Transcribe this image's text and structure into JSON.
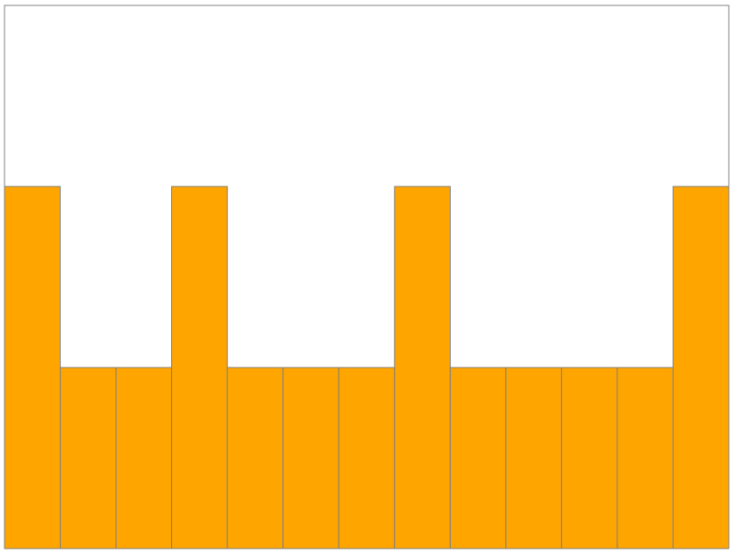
{
  "chart_data": {
    "type": "bar",
    "categories": [
      "",
      "",
      "",
      "",
      "",
      "",
      "",
      "",
      "",
      "",
      "",
      "",
      ""
    ],
    "values": [
      2,
      1,
      1,
      2,
      1,
      1,
      1,
      2,
      1,
      1,
      1,
      1,
      2
    ],
    "ylim": [
      0,
      3
    ],
    "title": "",
    "xlabel": "",
    "ylabel": "",
    "grid": false,
    "colors": {
      "bar_fill": "#FFA500",
      "bar_stroke": "#808080",
      "frame_stroke": "#808080",
      "background": "#FFFFFF"
    }
  }
}
